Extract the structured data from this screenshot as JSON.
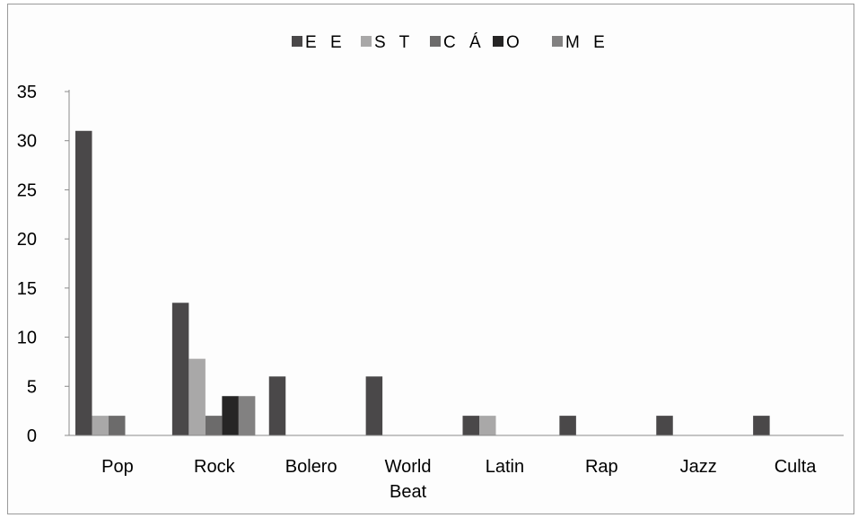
{
  "chart_data": {
    "type": "bar",
    "title": "",
    "xlabel": "",
    "ylabel": "",
    "categories": [
      [
        "Pop"
      ],
      [
        "Rock"
      ],
      [
        "Bolero"
      ],
      [
        "World",
        "Beat"
      ],
      [
        "Latin"
      ],
      [
        "Rap"
      ],
      [
        "Jazz"
      ],
      [
        "Culta"
      ]
    ],
    "series": [
      {
        "name": "E E",
        "color": "#4a4849",
        "values": [
          31,
          13.5,
          6,
          6,
          2,
          2,
          2,
          2
        ]
      },
      {
        "name": "S T",
        "color": "#a9a8a8",
        "values": [
          2,
          7.8,
          0,
          0,
          2,
          0,
          0,
          0
        ]
      },
      {
        "name": "C Á",
        "color": "#6c6b6b",
        "values": [
          2,
          2,
          0,
          0,
          0,
          0,
          0,
          0
        ]
      },
      {
        "name": "O",
        "color": "#262525",
        "values": [
          0,
          4,
          0,
          0,
          0,
          0,
          0,
          0
        ]
      },
      {
        "name": "M E",
        "color": "#828181",
        "values": [
          0,
          4,
          0,
          0,
          0,
          0,
          0,
          0
        ]
      }
    ],
    "ylim": [
      0,
      35
    ],
    "yticks": [
      0,
      5,
      10,
      15,
      20,
      25,
      30,
      35
    ],
    "grid": false,
    "legend_position": "top"
  }
}
